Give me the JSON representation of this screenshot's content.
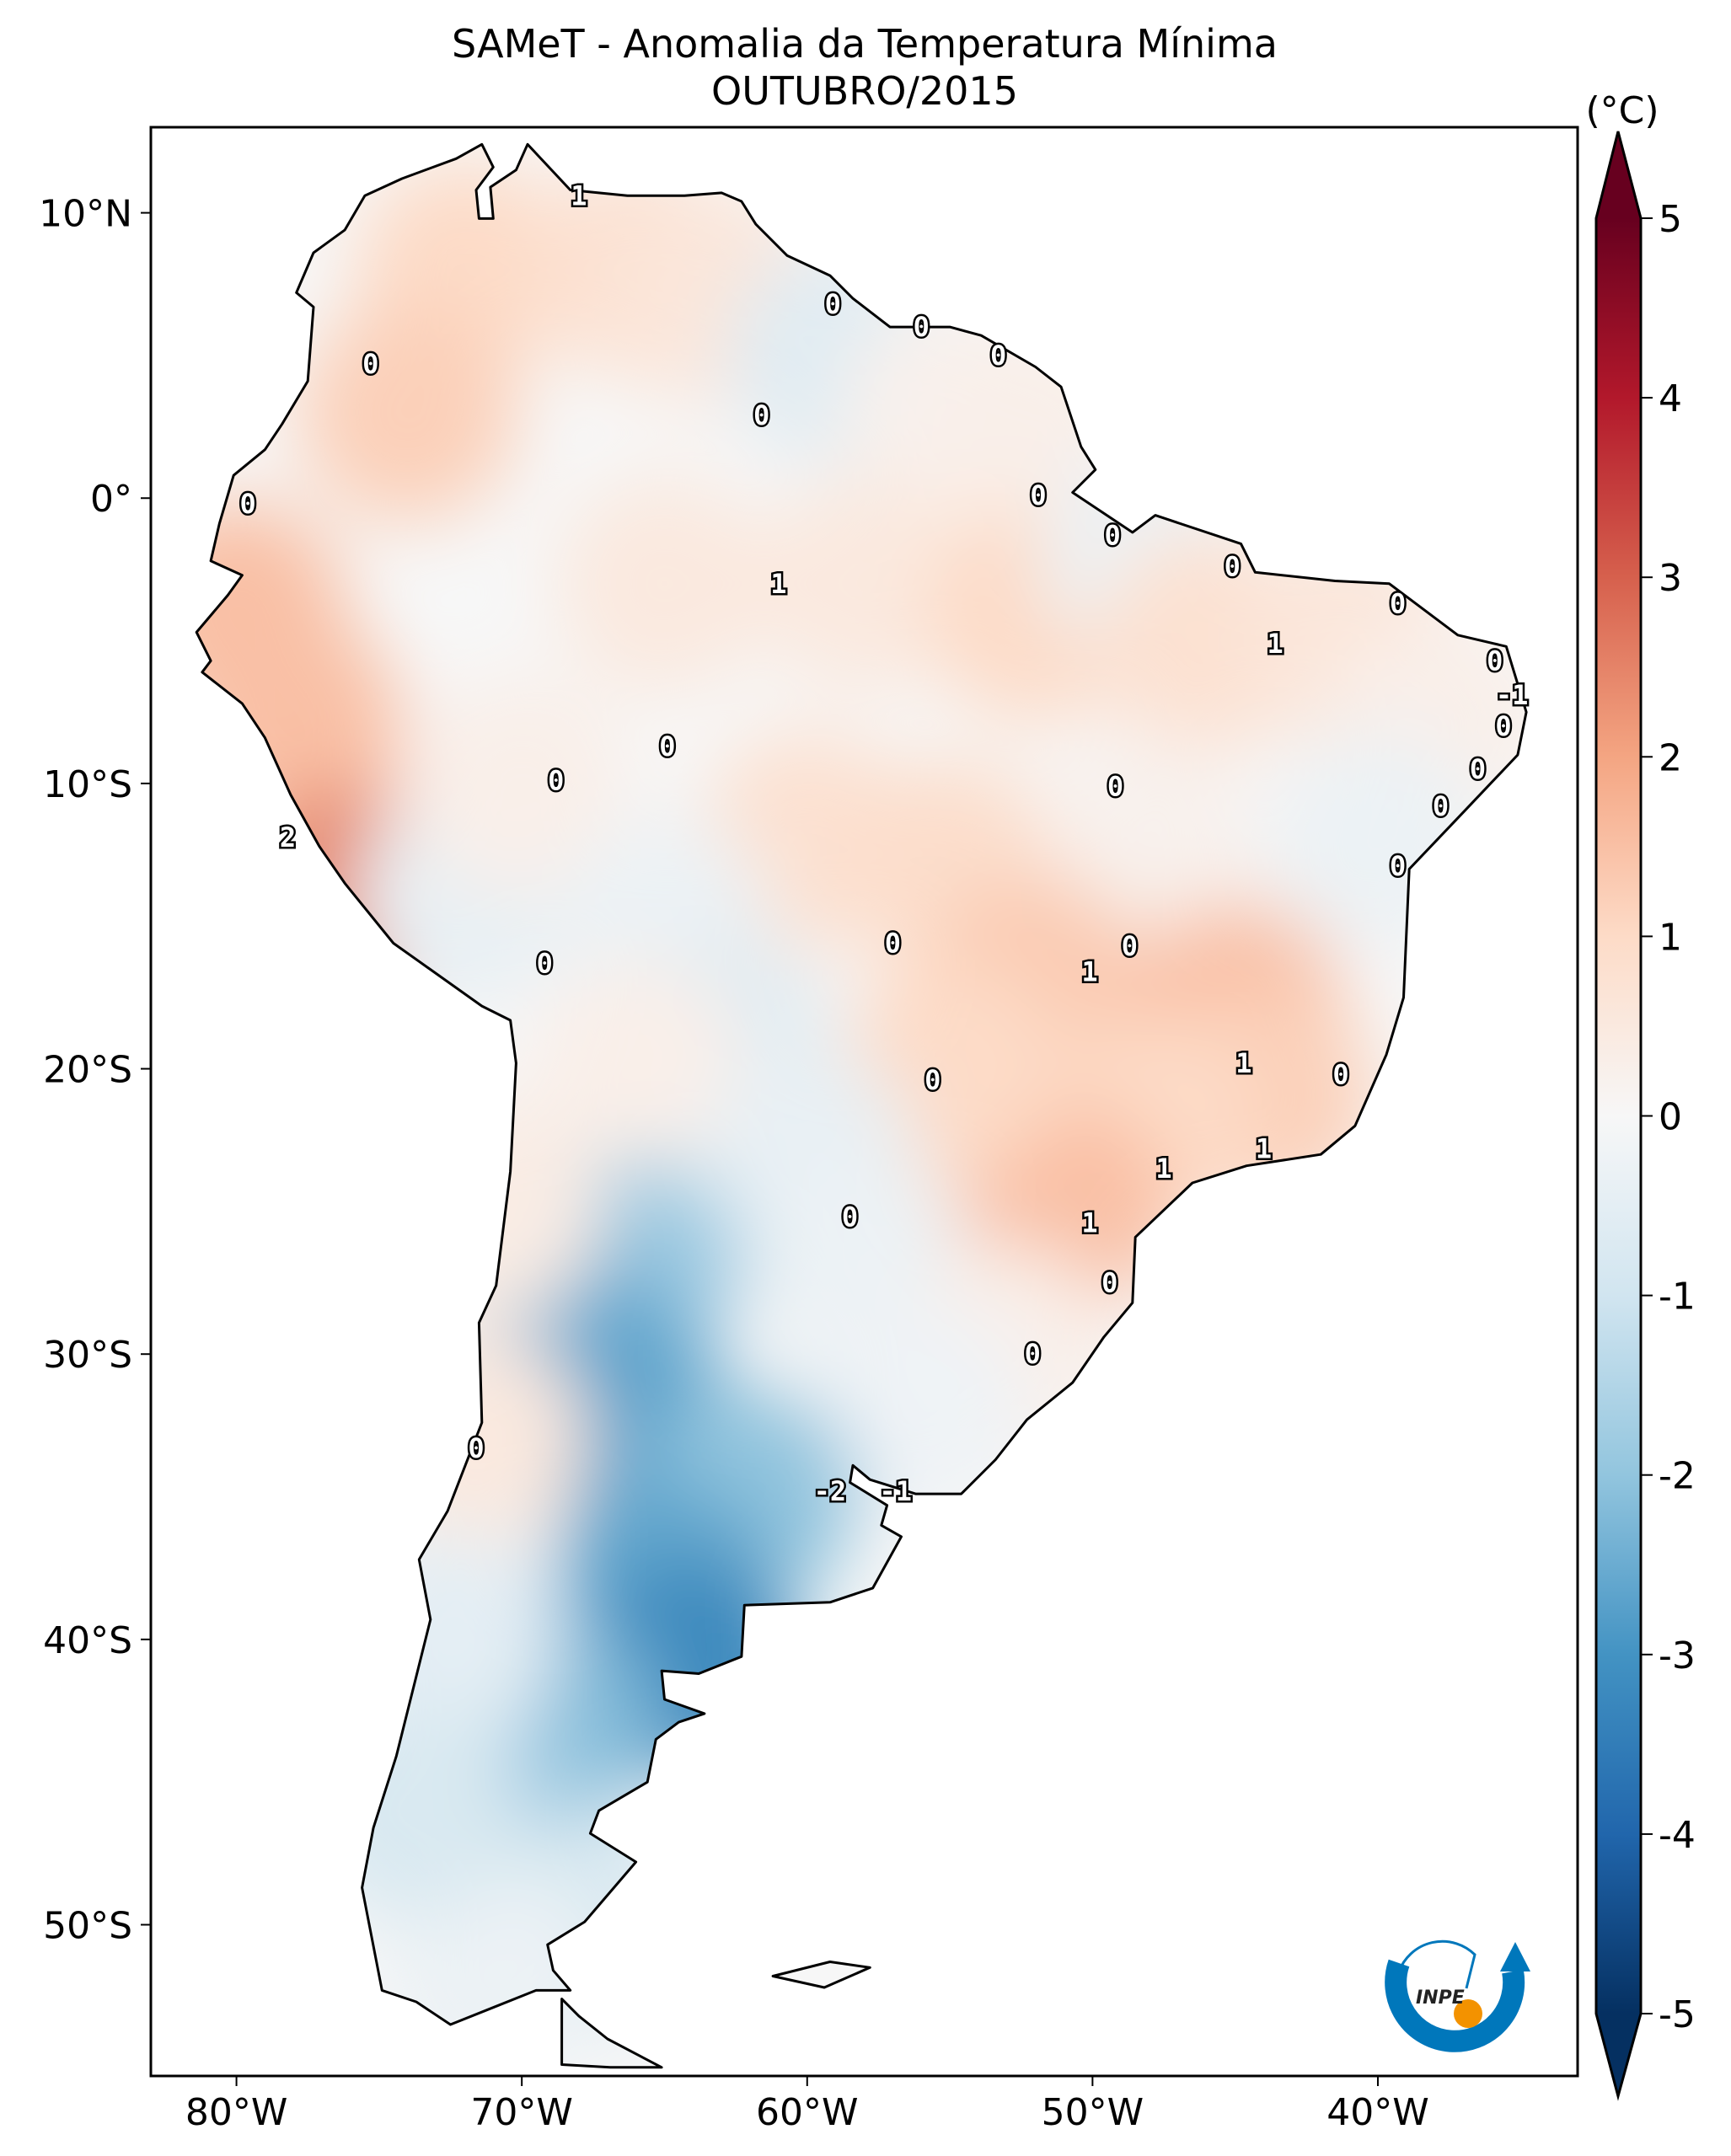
{
  "chart_data": {
    "type": "heatmap",
    "title": "SAMeT - Anomalia da Temperatura Mínima",
    "subtitle": "OUTUBRO/2015",
    "xlim": [
      -83,
      -33
    ],
    "ylim": [
      -55.3,
      13
    ],
    "x_ticks": [
      {
        "value": -80,
        "label": "80°W"
      },
      {
        "value": -70,
        "label": "70°W"
      },
      {
        "value": -60,
        "label": "60°W"
      },
      {
        "value": -50,
        "label": "50°W"
      },
      {
        "value": -40,
        "label": "40°W"
      }
    ],
    "y_ticks": [
      {
        "value": 10,
        "label": "10°N"
      },
      {
        "value": 0,
        "label": "0°"
      },
      {
        "value": -10,
        "label": "10°S"
      },
      {
        "value": -20,
        "label": "20°S"
      },
      {
        "value": -30,
        "label": "30°S"
      },
      {
        "value": -40,
        "label": "40°S"
      },
      {
        "value": -50,
        "label": "50°S"
      }
    ],
    "colorbar": {
      "label": "(°C)",
      "colormap": "RdBu_r",
      "range": [
        -5,
        5
      ],
      "extend": "both",
      "ticks": [
        "5",
        "4",
        "3",
        "2",
        "1",
        "0",
        "-1",
        "-2",
        "-3",
        "-4",
        "-5"
      ]
    },
    "contour_labels": [
      {
        "text": "1",
        "lon": -68.0,
        "lat": 10.6
      },
      {
        "text": "0",
        "lon": -59.1,
        "lat": 6.8
      },
      {
        "text": "0",
        "lon": -56.0,
        "lat": 6.0
      },
      {
        "text": "0",
        "lon": -53.3,
        "lat": 5.0
      },
      {
        "text": "0",
        "lon": -75.3,
        "lat": 4.7
      },
      {
        "text": "0",
        "lon": -61.6,
        "lat": 2.9
      },
      {
        "text": "0",
        "lon": -79.6,
        "lat": -0.2
      },
      {
        "text": "0",
        "lon": -51.9,
        "lat": 0.1
      },
      {
        "text": "0",
        "lon": -49.3,
        "lat": -1.3
      },
      {
        "text": "0",
        "lon": -45.1,
        "lat": -2.4
      },
      {
        "text": "1",
        "lon": -61.0,
        "lat": -3.0
      },
      {
        "text": "0",
        "lon": -39.3,
        "lat": -3.7
      },
      {
        "text": "1",
        "lon": -43.6,
        "lat": -5.1
      },
      {
        "text": "0",
        "lon": -35.9,
        "lat": -5.7
      },
      {
        "text": "-1",
        "lon": -35.3,
        "lat": -6.9
      },
      {
        "text": "0",
        "lon": -35.6,
        "lat": -8.0
      },
      {
        "text": "0",
        "lon": -64.9,
        "lat": -8.7
      },
      {
        "text": "0",
        "lon": -36.5,
        "lat": -9.5
      },
      {
        "text": "0",
        "lon": -68.8,
        "lat": -9.9
      },
      {
        "text": "0",
        "lon": -49.2,
        "lat": -10.1
      },
      {
        "text": "0",
        "lon": -37.8,
        "lat": -10.8
      },
      {
        "text": "2",
        "lon": -78.2,
        "lat": -11.9
      },
      {
        "text": "0",
        "lon": -39.3,
        "lat": -12.9
      },
      {
        "text": "0",
        "lon": -57.0,
        "lat": -15.6
      },
      {
        "text": "0",
        "lon": -48.7,
        "lat": -15.7
      },
      {
        "text": "0",
        "lon": -69.2,
        "lat": -16.3
      },
      {
        "text": "1",
        "lon": -50.1,
        "lat": -16.6
      },
      {
        "text": "1",
        "lon": -44.7,
        "lat": -19.8
      },
      {
        "text": "0",
        "lon": -55.6,
        "lat": -20.4
      },
      {
        "text": "0",
        "lon": -41.3,
        "lat": -20.2
      },
      {
        "text": "1",
        "lon": -47.5,
        "lat": -23.5
      },
      {
        "text": "1",
        "lon": -44.0,
        "lat": -22.8
      },
      {
        "text": "0",
        "lon": -58.5,
        "lat": -25.2
      },
      {
        "text": "1",
        "lon": -50.1,
        "lat": -25.4
      },
      {
        "text": "0",
        "lon": -49.4,
        "lat": -27.5
      },
      {
        "text": "0",
        "lon": -52.1,
        "lat": -30.0
      },
      {
        "text": "0",
        "lon": -71.6,
        "lat": -33.3
      },
      {
        "text": "-2",
        "lon": -59.2,
        "lat": -34.8
      },
      {
        "text": "-1",
        "lon": -56.9,
        "lat": -34.8
      }
    ],
    "field_samples": [
      {
        "lon": -72,
        "lat": 8,
        "value": 1.0
      },
      {
        "lon": -66,
        "lat": 8,
        "value": 0.8
      },
      {
        "lon": -74,
        "lat": 3,
        "value": 1.2
      },
      {
        "lon": -63,
        "lat": 7,
        "value": 0.6
      },
      {
        "lon": -59,
        "lat": 5,
        "value": -0.6
      },
      {
        "lon": -55,
        "lat": 3,
        "value": 0.2
      },
      {
        "lon": -52,
        "lat": 2,
        "value": 0.3
      },
      {
        "lon": -65,
        "lat": -3,
        "value": 0.5
      },
      {
        "lon": -58,
        "lat": -3,
        "value": 0.5
      },
      {
        "lon": -52,
        "lat": -4,
        "value": 1.0
      },
      {
        "lon": -48,
        "lat": -2,
        "value": -0.3
      },
      {
        "lon": -46,
        "lat": -5,
        "value": 0.8
      },
      {
        "lon": -41,
        "lat": -5,
        "value": 0.6
      },
      {
        "lon": -38,
        "lat": -8,
        "value": 0.3
      },
      {
        "lon": -40,
        "lat": -12,
        "value": -0.3
      },
      {
        "lon": -78,
        "lat": -8,
        "value": 1.5
      },
      {
        "lon": -76,
        "lat": -14,
        "value": 2.5
      },
      {
        "lon": -80,
        "lat": -4,
        "value": 1.5
      },
      {
        "lon": -72,
        "lat": -14,
        "value": -0.4
      },
      {
        "lon": -70,
        "lat": -10,
        "value": 0.3
      },
      {
        "lon": -60,
        "lat": -12,
        "value": 0.8
      },
      {
        "lon": -55,
        "lat": -13,
        "value": 0.9
      },
      {
        "lon": -48,
        "lat": -12,
        "value": 0.2
      },
      {
        "lon": -52,
        "lat": -17,
        "value": 1.3
      },
      {
        "lon": -45,
        "lat": -18,
        "value": 1.5
      },
      {
        "lon": -44,
        "lat": -21,
        "value": 1.2
      },
      {
        "lon": -48,
        "lat": -22,
        "value": 1.0
      },
      {
        "lon": -51,
        "lat": -25,
        "value": 1.5
      },
      {
        "lon": -55,
        "lat": -20,
        "value": 1.0
      },
      {
        "lon": -65,
        "lat": -15,
        "value": -0.3
      },
      {
        "lon": -63,
        "lat": -19,
        "value": -0.6
      },
      {
        "lon": -66,
        "lat": -20,
        "value": 0.3
      },
      {
        "lon": -60,
        "lat": -23,
        "value": -0.4
      },
      {
        "lon": -58,
        "lat": -27,
        "value": -0.3
      },
      {
        "lon": -53,
        "lat": -30,
        "value": 0.3
      },
      {
        "lon": -56,
        "lat": -32,
        "value": -0.2
      },
      {
        "lon": -66,
        "lat": -27,
        "value": -1.8
      },
      {
        "lon": -68,
        "lat": -30,
        "value": -2.5
      },
      {
        "lon": -66,
        "lat": -33,
        "value": -2.7
      },
      {
        "lon": -62,
        "lat": -35,
        "value": -2.0
      },
      {
        "lon": -65,
        "lat": -38,
        "value": -2.6
      },
      {
        "lon": -64,
        "lat": -41,
        "value": -3.2
      },
      {
        "lon": -69,
        "lat": -43,
        "value": -2.2
      },
      {
        "lon": -70,
        "lat": -47,
        "value": -1.8
      },
      {
        "lon": -68,
        "lat": -50,
        "value": -0.8
      },
      {
        "lon": -71,
        "lat": -52,
        "value": -0.3
      },
      {
        "lon": -71,
        "lat": -25,
        "value": 0.4
      },
      {
        "lon": -71.5,
        "lat": -33,
        "value": 0.5
      },
      {
        "lon": -72.5,
        "lat": -40,
        "value": -0.5
      },
      {
        "lon": -74,
        "lat": -46,
        "value": -0.8
      }
    ]
  },
  "logo": {
    "text": "INPE",
    "colors": {
      "blue": "#0077bb",
      "orange": "#f39200"
    }
  }
}
